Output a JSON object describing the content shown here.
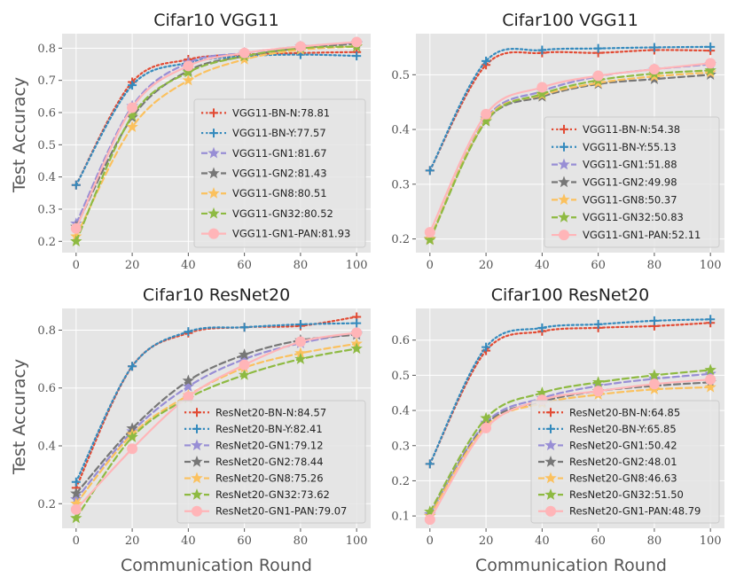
{
  "figure": {
    "xlabel": "Communication Round",
    "ylabel": "Test Accuracy"
  },
  "chart_data": [
    {
      "type": "line",
      "title": "Cifar10 VGG11",
      "xlabel": "",
      "ylabel": "Test Accuracy",
      "x": [
        0,
        20,
        40,
        60,
        80,
        100
      ],
      "xticks": [
        "0",
        "20",
        "40",
        "60",
        "80",
        "100"
      ],
      "yticks": [
        "0.2",
        "0.3",
        "0.4",
        "0.5",
        "0.6",
        "0.7",
        "0.8"
      ],
      "xlim": [
        -5,
        105
      ],
      "ylim": [
        0.165,
        0.845
      ],
      "legend_position": "lower-right",
      "grid": true,
      "series": [
        {
          "name": "VGG11-BN-N:78.81",
          "style": "dotted",
          "marker": "plus",
          "color": "#E24A33",
          "values": [
            0.375,
            0.695,
            0.765,
            0.78,
            0.785,
            0.788
          ]
        },
        {
          "name": "VGG11-BN-Y:77.57",
          "style": "dotted",
          "marker": "plus",
          "color": "#348ABD",
          "values": [
            0.375,
            0.685,
            0.755,
            0.775,
            0.78,
            0.776
          ]
        },
        {
          "name": "VGG11-GN1:81.67",
          "style": "dashed",
          "marker": "star",
          "color": "#988ED5",
          "values": [
            0.255,
            0.62,
            0.755,
            0.785,
            0.805,
            0.817
          ]
        },
        {
          "name": "VGG11-GN2:81.43",
          "style": "dashed",
          "marker": "star",
          "color": "#777777",
          "values": [
            0.245,
            0.585,
            0.73,
            0.775,
            0.8,
            0.814
          ]
        },
        {
          "name": "VGG11-GN8:80.51",
          "style": "dashed",
          "marker": "star",
          "color": "#FBC15E",
          "values": [
            0.215,
            0.555,
            0.7,
            0.765,
            0.795,
            0.805
          ]
        },
        {
          "name": "VGG11-GN32:80.52",
          "style": "dashed",
          "marker": "star",
          "color": "#8EBA42",
          "values": [
            0.2,
            0.59,
            0.725,
            0.775,
            0.8,
            0.805
          ]
        },
        {
          "name": "VGG11-GN1-PAN:81.93",
          "style": "solid",
          "marker": "circle",
          "color": "#FFB5B8",
          "values": [
            0.24,
            0.615,
            0.745,
            0.785,
            0.805,
            0.819
          ]
        }
      ]
    },
    {
      "type": "line",
      "title": "Cifar100 VGG11",
      "xlabel": "",
      "ylabel": "",
      "x": [
        0,
        20,
        40,
        60,
        80,
        100
      ],
      "xticks": [
        "0",
        "20",
        "40",
        "60",
        "80",
        "100"
      ],
      "yticks": [
        "0.2",
        "0.3",
        "0.4",
        "0.5"
      ],
      "xlim": [
        -5,
        105
      ],
      "ylim": [
        0.175,
        0.575
      ],
      "legend_position": "lower-right",
      "grid": true,
      "series": [
        {
          "name": "VGG11-BN-N:54.38",
          "style": "dotted",
          "marker": "plus",
          "color": "#E24A33",
          "values": [
            0.325,
            0.518,
            0.54,
            0.54,
            0.545,
            0.544
          ]
        },
        {
          "name": "VGG11-BN-Y:55.13",
          "style": "dotted",
          "marker": "plus",
          "color": "#348ABD",
          "values": [
            0.325,
            0.525,
            0.545,
            0.548,
            0.55,
            0.551
          ]
        },
        {
          "name": "VGG11-GN1:51.88",
          "style": "dashed",
          "marker": "star",
          "color": "#988ED5",
          "values": [
            0.2,
            0.42,
            0.47,
            0.497,
            0.51,
            0.519
          ]
        },
        {
          "name": "VGG11-GN2:49.98",
          "style": "dashed",
          "marker": "star",
          "color": "#777777",
          "values": [
            0.2,
            0.415,
            0.46,
            0.483,
            0.492,
            0.5
          ]
        },
        {
          "name": "VGG11-GN8:50.37",
          "style": "dashed",
          "marker": "star",
          "color": "#FBC15E",
          "values": [
            0.2,
            0.418,
            0.463,
            0.485,
            0.497,
            0.504
          ]
        },
        {
          "name": "VGG11-GN32:50.83",
          "style": "dashed",
          "marker": "star",
          "color": "#8EBA42",
          "values": [
            0.198,
            0.415,
            0.465,
            0.49,
            0.502,
            0.508
          ]
        },
        {
          "name": "VGG11-GN1-PAN:52.11",
          "style": "solid",
          "marker": "circle",
          "color": "#FFB5B8",
          "values": [
            0.212,
            0.428,
            0.477,
            0.498,
            0.51,
            0.521
          ]
        }
      ]
    },
    {
      "type": "line",
      "title": "Cifar10 ResNet20",
      "xlabel": "Communication Round",
      "ylabel": "Test Accuracy",
      "x": [
        0,
        20,
        40,
        60,
        80,
        100
      ],
      "xticks": [
        "0",
        "20",
        "40",
        "60",
        "80",
        "100"
      ],
      "yticks": [
        "0.2",
        "0.4",
        "0.6",
        "0.8"
      ],
      "xlim": [
        -5,
        105
      ],
      "ylim": [
        0.115,
        0.875
      ],
      "legend_position": "lower-right",
      "grid": true,
      "series": [
        {
          "name": "ResNet20-BN-N:84.57",
          "style": "dotted",
          "marker": "plus",
          "color": "#E24A33",
          "values": [
            0.255,
            0.675,
            0.79,
            0.81,
            0.815,
            0.846
          ]
        },
        {
          "name": "ResNet20-BN-Y:82.41",
          "style": "dotted",
          "marker": "plus",
          "color": "#348ABD",
          "values": [
            0.275,
            0.675,
            0.795,
            0.81,
            0.82,
            0.824
          ]
        },
        {
          "name": "ResNet20-GN1:79.12",
          "style": "dashed",
          "marker": "star",
          "color": "#988ED5",
          "values": [
            0.215,
            0.45,
            0.605,
            0.7,
            0.755,
            0.791
          ]
        },
        {
          "name": "ResNet20-GN2:78.44",
          "style": "dashed",
          "marker": "star",
          "color": "#777777",
          "values": [
            0.235,
            0.46,
            0.625,
            0.715,
            0.765,
            0.784
          ]
        },
        {
          "name": "ResNet20-GN8:75.26",
          "style": "dashed",
          "marker": "star",
          "color": "#FBC15E",
          "values": [
            0.2,
            0.44,
            0.575,
            0.67,
            0.72,
            0.753
          ]
        },
        {
          "name": "ResNet20-GN32:73.62",
          "style": "dashed",
          "marker": "star",
          "color": "#8EBA42",
          "values": [
            0.15,
            0.43,
            0.565,
            0.645,
            0.7,
            0.736
          ]
        },
        {
          "name": "ResNet20-GN1-PAN:79.07",
          "style": "solid",
          "marker": "circle",
          "color": "#FFB5B8",
          "values": [
            0.18,
            0.39,
            0.57,
            0.68,
            0.76,
            0.791
          ]
        }
      ]
    },
    {
      "type": "line",
      "title": "Cifar100 ResNet20",
      "xlabel": "Communication Round",
      "ylabel": "",
      "x": [
        0,
        20,
        40,
        60,
        80,
        100
      ],
      "xticks": [
        "0",
        "20",
        "40",
        "60",
        "80",
        "100"
      ],
      "yticks": [
        "0.1",
        "0.2",
        "0.3",
        "0.4",
        "0.5",
        "0.6"
      ],
      "xlim": [
        -5,
        105
      ],
      "ylim": [
        0.065,
        0.69
      ],
      "legend_position": "lower-right",
      "grid": true,
      "series": [
        {
          "name": "ResNet20-BN-N:64.85",
          "style": "dotted",
          "marker": "plus",
          "color": "#E24A33",
          "values": [
            0.248,
            0.57,
            0.625,
            0.635,
            0.64,
            0.649
          ]
        },
        {
          "name": "ResNet20-BN-Y:65.85",
          "style": "dotted",
          "marker": "plus",
          "color": "#348ABD",
          "values": [
            0.248,
            0.58,
            0.635,
            0.645,
            0.655,
            0.659
          ]
        },
        {
          "name": "ResNet20-GN1:50.42",
          "style": "dashed",
          "marker": "star",
          "color": "#988ED5",
          "values": [
            0.105,
            0.365,
            0.435,
            0.47,
            0.49,
            0.504
          ]
        },
        {
          "name": "ResNet20-GN2:48.01",
          "style": "dashed",
          "marker": "star",
          "color": "#777777",
          "values": [
            0.1,
            0.36,
            0.425,
            0.455,
            0.47,
            0.48
          ]
        },
        {
          "name": "ResNet20-GN8:46.63",
          "style": "dashed",
          "marker": "star",
          "color": "#FBC15E",
          "values": [
            0.1,
            0.355,
            0.42,
            0.445,
            0.46,
            0.466
          ]
        },
        {
          "name": "ResNet20-GN32:51.50",
          "style": "dashed",
          "marker": "star",
          "color": "#8EBA42",
          "values": [
            0.112,
            0.378,
            0.45,
            0.48,
            0.5,
            0.515
          ]
        },
        {
          "name": "ResNet20-GN1-PAN:48.79",
          "style": "solid",
          "marker": "circle",
          "color": "#FFB5B8",
          "values": [
            0.09,
            0.35,
            0.43,
            0.455,
            0.475,
            0.488
          ]
        }
      ]
    }
  ]
}
